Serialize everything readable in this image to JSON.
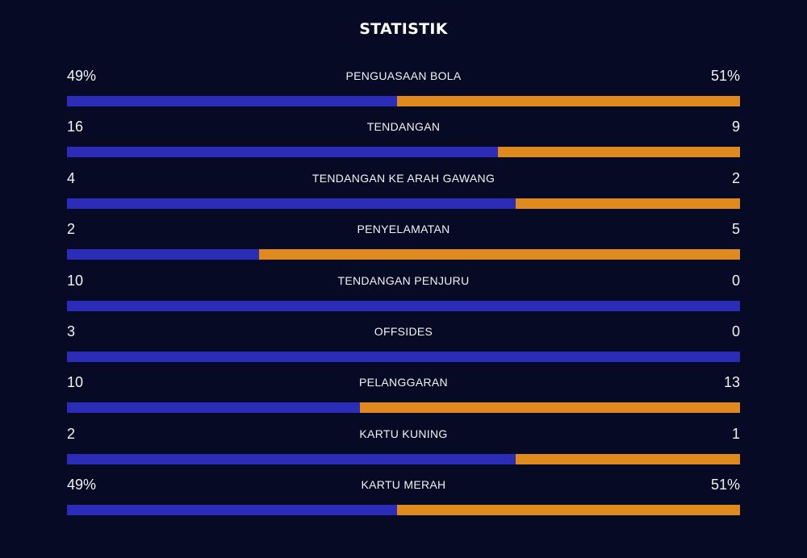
{
  "header": {
    "title": "STATISTIK"
  },
  "colors": {
    "background": "#070a24",
    "home": "#2b2cb8",
    "away": "#e08a1e"
  },
  "stats": [
    {
      "label": "PENGUASAAN BOLA",
      "left": "49%",
      "right": "51%",
      "left_share": 0.49
    },
    {
      "label": "TENDANGAN",
      "left": "16",
      "right": "9",
      "left_share": 0.64
    },
    {
      "label": "TENDANGAN KE ARAH GAWANG",
      "left": "4",
      "right": "2",
      "left_share": 0.6667
    },
    {
      "label": "PENYELAMATAN",
      "left": "2",
      "right": "5",
      "left_share": 0.2857
    },
    {
      "label": "TENDANGAN PENJURU",
      "left": "10",
      "right": "0",
      "left_share": 1.0
    },
    {
      "label": "OFFSIDES",
      "left": "3",
      "right": "0",
      "left_share": 1.0
    },
    {
      "label": "PELANGGARAN",
      "left": "10",
      "right": "13",
      "left_share": 0.4348
    },
    {
      "label": "KARTU KUNING",
      "left": "2",
      "right": "1",
      "left_share": 0.6667
    },
    {
      "label": "KARTU MERAH",
      "left": "49%",
      "right": "51%",
      "left_share": 0.49
    }
  ]
}
